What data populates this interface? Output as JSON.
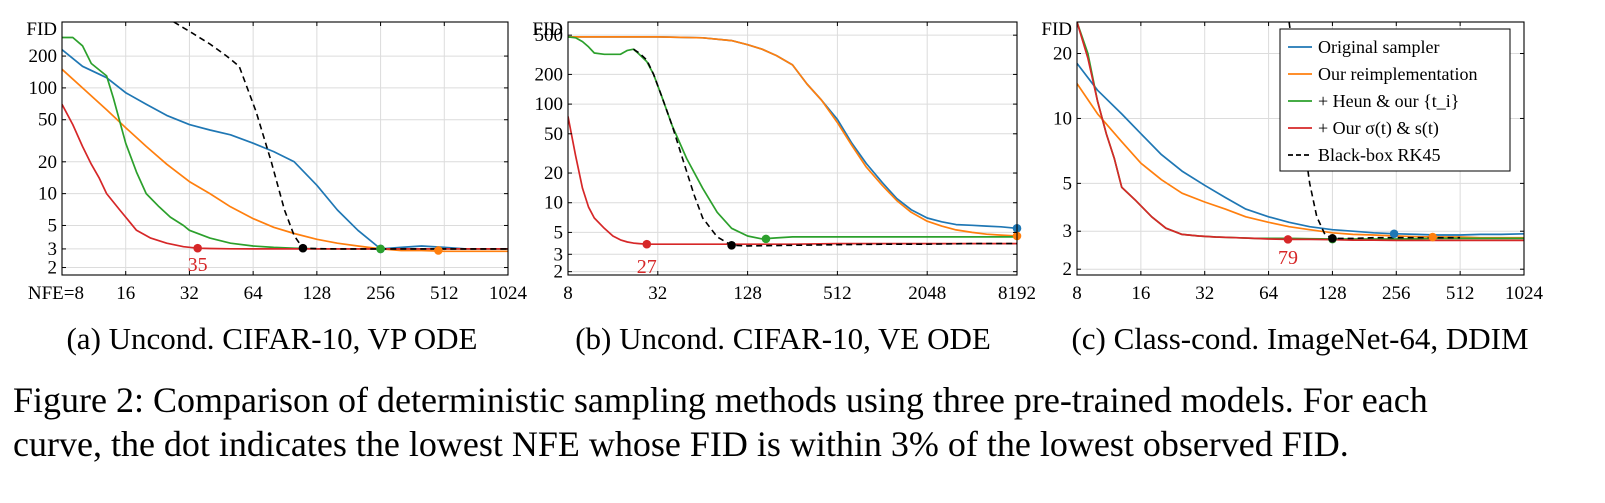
{
  "caption": {
    "line1": "Figure 2: Comparison of deterministic sampling methods using three pre-trained models. For each",
    "line2": "curve, the dot indicates the lowest NFE whose FID is within 3% of the lowest observed FID."
  },
  "legend": {
    "entries": [
      {
        "label": "Original sampler",
        "color": "#1f77b4",
        "dashed": false
      },
      {
        "label": "Our reimplementation",
        "color": "#ff7f0e",
        "dashed": false
      },
      {
        "label": "+ Heun & our {t_i}",
        "color": "#2ca02c",
        "dashed": false
      },
      {
        "label": "+ Our σ(t) & s(t)",
        "color": "#d62728",
        "dashed": false
      },
      {
        "label": "Black-box RK45",
        "color": "#000000",
        "dashed": true
      }
    ]
  },
  "chart_data": [
    {
      "type": "line",
      "subtitle": "(a) Uncond. CIFAR-10, VP ODE",
      "ylabel": "FID",
      "xlabel": "NFE",
      "xscale": "log2",
      "yscale": "log",
      "xlim": [
        8,
        1024
      ],
      "ylim": [
        1.7,
        420
      ],
      "xticks": [
        8,
        16,
        32,
        64,
        128,
        256,
        512,
        1024
      ],
      "xtick_labels": [
        "NFE=8",
        "16",
        "32",
        "64",
        "128",
        "256",
        "512",
        "1024"
      ],
      "yticks": [
        2,
        3,
        5,
        10,
        20,
        50,
        100,
        200
      ],
      "ytick_labels": [
        "2",
        "3",
        "5",
        "10",
        "20",
        "50",
        "100",
        "200"
      ],
      "annotation": {
        "text": "35",
        "color": "#d62728",
        "x": 35,
        "y": 2.2
      },
      "series": [
        {
          "name": "Original sampler",
          "color": "#1f77b4",
          "x": [
            8,
            10,
            13,
            16,
            20,
            25,
            32,
            40,
            50,
            64,
            80,
            100,
            128,
            160,
            200,
            256,
            320,
            400,
            512,
            640,
            800,
            1024
          ],
          "y": [
            230,
            160,
            125,
            90,
            70,
            55,
            45,
            40,
            36,
            30,
            25,
            20,
            12,
            7,
            4.5,
            3.0,
            3.1,
            3.2,
            3.1,
            3.0,
            3.0,
            3.0
          ],
          "dot": {
            "x": 256,
            "y": 3.0
          }
        },
        {
          "name": "Our reimplementation",
          "color": "#ff7f0e",
          "x": [
            8,
            10,
            13,
            16,
            20,
            25,
            32,
            40,
            50,
            64,
            80,
            100,
            128,
            160,
            200,
            256,
            320,
            400,
            512,
            640,
            800,
            1024
          ],
          "y": [
            150,
            100,
            62,
            42,
            28,
            19,
            13,
            10,
            7.5,
            5.8,
            4.8,
            4.2,
            3.7,
            3.4,
            3.2,
            3.0,
            2.9,
            2.9,
            2.85,
            2.85,
            2.85,
            2.85
          ],
          "dot": {
            "x": 480,
            "y": 2.9
          }
        },
        {
          "name": "+ Heun & our {t_i}",
          "color": "#2ca02c",
          "x": [
            8,
            9,
            10,
            11,
            13,
            14,
            16,
            18,
            20,
            23,
            26,
            30,
            32,
            40,
            50,
            64,
            80,
            100,
            128,
            160,
            200,
            256,
            320,
            400,
            512,
            640,
            800,
            1024
          ],
          "y": [
            300,
            300,
            250,
            170,
            130,
            80,
            30,
            16,
            10,
            7.5,
            6,
            5,
            4.5,
            3.8,
            3.4,
            3.2,
            3.1,
            3.05,
            3.0,
            3.0,
            3.0,
            3.0,
            3.0,
            3.0,
            3.0,
            3.0,
            3.0,
            3.0
          ],
          "dot": {
            "x": 256,
            "y": 3.0
          }
        },
        {
          "name": "+ Our σ(t) & s(t)",
          "color": "#d62728",
          "x": [
            8,
            9,
            10,
            11,
            12,
            13,
            15,
            18,
            21,
            25,
            30,
            35,
            40,
            50,
            64,
            80,
            100,
            128,
            160,
            200,
            256,
            320,
            400,
            512,
            640,
            800,
            1024
          ],
          "y": [
            70,
            45,
            28,
            19,
            14,
            10,
            7,
            4.5,
            3.8,
            3.4,
            3.15,
            3.05,
            3.03,
            3.01,
            3.0,
            3.0,
            3.0,
            3.0,
            3.0,
            3.0,
            3.0,
            3.0,
            3.0,
            3.0,
            3.0,
            3.0,
            3.0
          ],
          "dot": {
            "x": 35,
            "y": 3.05
          }
        },
        {
          "name": "Black-box RK45",
          "color": "#000000",
          "dashed": true,
          "x": [
            27,
            33,
            40,
            48,
            55,
            66,
            78,
            90,
            100,
            110,
            128,
            160,
            200,
            256,
            320,
            400,
            512,
            640,
            800,
            1024
          ],
          "y": [
            420,
            330,
            260,
            200,
            160,
            60,
            20,
            7,
            4,
            3.05,
            3.02,
            3.0,
            3.0,
            3.0,
            3.0,
            3.0,
            3.0,
            3.0,
            3.0,
            3.0
          ],
          "dot": {
            "x": 110,
            "y": 3.05
          }
        }
      ]
    },
    {
      "type": "line",
      "subtitle": "(b) Uncond. CIFAR-10, VE ODE",
      "ylabel": "FID",
      "xlabel": "NFE",
      "xscale": "log2",
      "yscale": "log",
      "xlim": [
        8,
        8192
      ],
      "ylim": [
        1.85,
        680
      ],
      "xticks": [
        8,
        32,
        128,
        512,
        2048,
        8192
      ],
      "xtick_labels": [
        "8",
        "32",
        "128",
        "512",
        "2048",
        "8192"
      ],
      "yticks": [
        2,
        3,
        5,
        10,
        20,
        50,
        100,
        200,
        500
      ],
      "ytick_labels": [
        "2",
        "3",
        "5",
        "10",
        "20",
        "50",
        "100",
        "200",
        "500"
      ],
      "annotation": {
        "text": "27",
        "color": "#d62728",
        "x": 27,
        "y": 2.35
      },
      "series": [
        {
          "name": "Original sampler",
          "color": "#1f77b4",
          "x": [
            8,
            16,
            32,
            64,
            100,
            128,
            160,
            200,
            256,
            320,
            400,
            512,
            640,
            800,
            1024,
            1280,
            1600,
            2048,
            2560,
            3200,
            4096,
            5120,
            6400,
            8192
          ],
          "y": [
            480,
            480,
            480,
            470,
            440,
            400,
            360,
            310,
            250,
            160,
            110,
            70,
            40,
            25,
            16,
            11,
            8.5,
            7.0,
            6.4,
            6.0,
            5.9,
            5.8,
            5.7,
            5.5
          ],
          "dot": {
            "x": 8192,
            "y": 5.5
          }
        },
        {
          "name": "Our reimplementation",
          "color": "#ff7f0e",
          "x": [
            8,
            16,
            32,
            64,
            100,
            128,
            160,
            200,
            256,
            320,
            400,
            512,
            640,
            800,
            1024,
            1280,
            1600,
            2048,
            2560,
            3200,
            4096,
            5120,
            6400,
            8192
          ],
          "y": [
            480,
            480,
            480,
            470,
            440,
            400,
            360,
            310,
            250,
            160,
            110,
            65,
            38,
            23,
            15,
            10.5,
            8.0,
            6.5,
            5.8,
            5.3,
            5.0,
            4.8,
            4.7,
            4.6
          ],
          "dot": {
            "x": 8192,
            "y": 4.6
          }
        },
        {
          "name": "+ Heun & our {t_i}",
          "color": "#2ca02c",
          "x": [
            8,
            9,
            10,
            11,
            12,
            14,
            16,
            18,
            20,
            22,
            24,
            27,
            30,
            34,
            40,
            50,
            64,
            80,
            100,
            128,
            160,
            200,
            256,
            320,
            512,
            1024,
            2048,
            4096,
            8192
          ],
          "y": [
            480,
            470,
            430,
            380,
            330,
            320,
            320,
            320,
            350,
            360,
            320,
            270,
            200,
            120,
            60,
            28,
            14,
            8.0,
            5.5,
            4.6,
            4.3,
            4.4,
            4.5,
            4.5,
            4.5,
            4.5,
            4.5,
            4.5,
            4.5
          ],
          "dot": {
            "x": 170,
            "y": 4.3
          }
        },
        {
          "name": "+ Our σ(t) & s(t)",
          "color": "#d62728",
          "x": [
            8,
            9,
            10,
            11,
            12,
            14,
            16,
            18,
            20,
            22,
            24,
            27,
            32,
            40,
            64,
            128,
            256,
            512,
            1024,
            2048,
            4096,
            8192
          ],
          "y": [
            75,
            30,
            14,
            9,
            7,
            5.5,
            4.6,
            4.2,
            4.0,
            3.9,
            3.85,
            3.8,
            3.8,
            3.8,
            3.8,
            3.8,
            3.8,
            3.85,
            3.85,
            3.85,
            3.85,
            3.85
          ],
          "dot": {
            "x": 27,
            "y": 3.8
          }
        },
        {
          "name": "Black-box RK45",
          "color": "#000000",
          "dashed": true,
          "x": [
            22,
            24,
            27,
            30,
            34,
            40,
            48,
            56,
            64,
            80,
            100,
            128,
            256,
            512,
            1024,
            2048,
            4096,
            8192
          ],
          "y": [
            360,
            330,
            280,
            200,
            120,
            60,
            25,
            12,
            7,
            4.5,
            3.7,
            3.65,
            3.7,
            3.75,
            3.8,
            3.8,
            3.85,
            3.85
          ],
          "dot": {
            "x": 100,
            "y": 3.7
          }
        }
      ]
    },
    {
      "type": "line",
      "subtitle": "(c) Class-cond. ImageNet-64, DDIM",
      "ylabel": "FID",
      "xlabel": "NFE",
      "xscale": "log2",
      "yscale": "log",
      "xlim": [
        8,
        1024
      ],
      "ylim": [
        1.88,
        28
      ],
      "xticks": [
        8,
        16,
        32,
        64,
        128,
        256,
        512,
        1024
      ],
      "xtick_labels": [
        "8",
        "16",
        "32",
        "64",
        "128",
        "256",
        "512",
        "1024"
      ],
      "yticks": [
        2,
        3,
        5,
        10,
        20
      ],
      "ytick_labels": [
        "2",
        "3",
        "5",
        "10",
        "20"
      ],
      "annotation": {
        "text": "79",
        "color": "#d62728",
        "x": 79,
        "y": 2.3
      },
      "series": [
        {
          "name": "Original sampler",
          "color": "#1f77b4",
          "x": [
            8,
            10,
            13,
            16,
            20,
            25,
            32,
            40,
            50,
            64,
            80,
            100,
            128,
            160,
            200,
            256,
            320,
            400,
            512,
            640,
            800,
            1024
          ],
          "y": [
            18,
            13.5,
            10.5,
            8.5,
            6.8,
            5.7,
            4.9,
            4.3,
            3.8,
            3.5,
            3.3,
            3.15,
            3.05,
            3.0,
            2.95,
            2.92,
            2.9,
            2.88,
            2.88,
            2.9,
            2.9,
            2.92
          ],
          "dot": {
            "x": 250,
            "y": 2.92
          }
        },
        {
          "name": "Our reimplementation",
          "color": "#ff7f0e",
          "x": [
            8,
            10,
            13,
            16,
            20,
            25,
            32,
            40,
            50,
            64,
            80,
            100,
            128,
            160,
            200,
            256,
            320,
            400,
            512,
            640,
            800,
            1024
          ],
          "y": [
            14.5,
            10.5,
            7.8,
            6.2,
            5.2,
            4.5,
            4.1,
            3.8,
            3.5,
            3.3,
            3.15,
            3.05,
            2.95,
            2.9,
            2.88,
            2.85,
            2.83,
            2.82,
            2.82,
            2.8,
            2.8,
            2.8
          ],
          "dot": {
            "x": 380,
            "y": 2.82
          }
        },
        {
          "name": "+ Heun & our {t_i}",
          "color": "#2ca02c",
          "x": [
            8,
            9,
            10,
            11,
            12,
            13,
            15,
            18,
            21,
            25,
            30,
            36,
            45,
            55,
            64,
            80,
            100,
            128,
            160,
            200,
            256,
            320,
            400,
            512,
            640,
            800,
            1024
          ],
          "y": [
            28,
            20,
            12,
            8.5,
            6.5,
            4.8,
            4.2,
            3.5,
            3.1,
            2.9,
            2.85,
            2.82,
            2.8,
            2.78,
            2.78,
            2.78,
            2.77,
            2.76,
            2.76,
            2.76,
            2.76,
            2.77,
            2.78,
            2.78,
            2.78,
            2.78,
            2.78
          ],
          "dot": {
            "x": 128,
            "y": 2.76
          }
        },
        {
          "name": "+ Our σ(t) & s(t)",
          "color": "#d62728",
          "x": [
            8,
            9,
            10,
            11,
            12,
            13,
            15,
            18,
            21,
            25,
            30,
            36,
            45,
            55,
            64,
            79,
            100,
            128,
            160,
            200,
            256,
            320,
            400,
            512,
            640,
            800,
            1024
          ],
          "y": [
            28,
            19,
            12,
            8.5,
            6.5,
            4.8,
            4.2,
            3.5,
            3.1,
            2.9,
            2.85,
            2.82,
            2.8,
            2.78,
            2.76,
            2.75,
            2.75,
            2.74,
            2.73,
            2.73,
            2.72,
            2.72,
            2.72,
            2.72,
            2.72,
            2.72,
            2.72
          ],
          "dot": {
            "x": 79,
            "y": 2.75
          }
        },
        {
          "name": "Black-box RK45",
          "color": "#000000",
          "dashed": true,
          "x": [
            80,
            85,
            92,
            100,
            108,
            118,
            128,
            160,
            200,
            256,
            320,
            400,
            512
          ],
          "y": [
            28,
            18,
            9,
            5,
            3.5,
            2.9,
            2.78,
            2.78,
            2.8,
            2.8,
            2.8,
            2.8,
            2.8
          ],
          "dot": {
            "x": 128,
            "y": 2.78
          }
        }
      ]
    }
  ]
}
